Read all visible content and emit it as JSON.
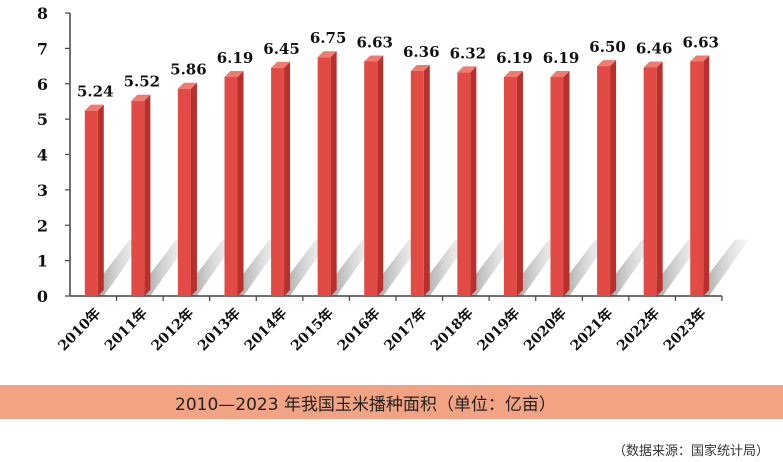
{
  "chart_data": {
    "type": "bar",
    "title": "2010—2023 年我国玉米播种面积（单位：亿亩）",
    "xlabel": "",
    "ylabel": "",
    "unit": "亿亩",
    "categories": [
      "2010年",
      "2011年",
      "2012年",
      "2013年",
      "2014年",
      "2015年",
      "2016年",
      "2017年",
      "2018年",
      "2019年",
      "2020年",
      "2021年",
      "2022年",
      "2023年"
    ],
    "values": [
      5.24,
      5.52,
      5.86,
      6.19,
      6.45,
      6.75,
      6.63,
      6.36,
      6.32,
      6.19,
      6.19,
      6.5,
      6.46,
      6.63
    ],
    "value_labels": [
      "5.24",
      "5.52",
      "5.86",
      "6.19",
      "6.45",
      "6.75",
      "6.63",
      "6.36",
      "6.32",
      "6.19",
      "6.19",
      "6.50",
      "6.46",
      "6.63"
    ],
    "ylim": [
      0,
      8
    ],
    "yticks": [
      0,
      1,
      2,
      3,
      4,
      5,
      6,
      7,
      8
    ],
    "grid": false,
    "legend": "none",
    "colors": {
      "bar_front": "#e24b45",
      "bar_side": "#b8302c",
      "bar_top": "#f07a6e",
      "caption_band": "#f2a383"
    }
  },
  "caption": "2010—2023 年我国玉米播种面积（单位：亿亩）",
  "source_note": "（数据来源：国家统计局）"
}
